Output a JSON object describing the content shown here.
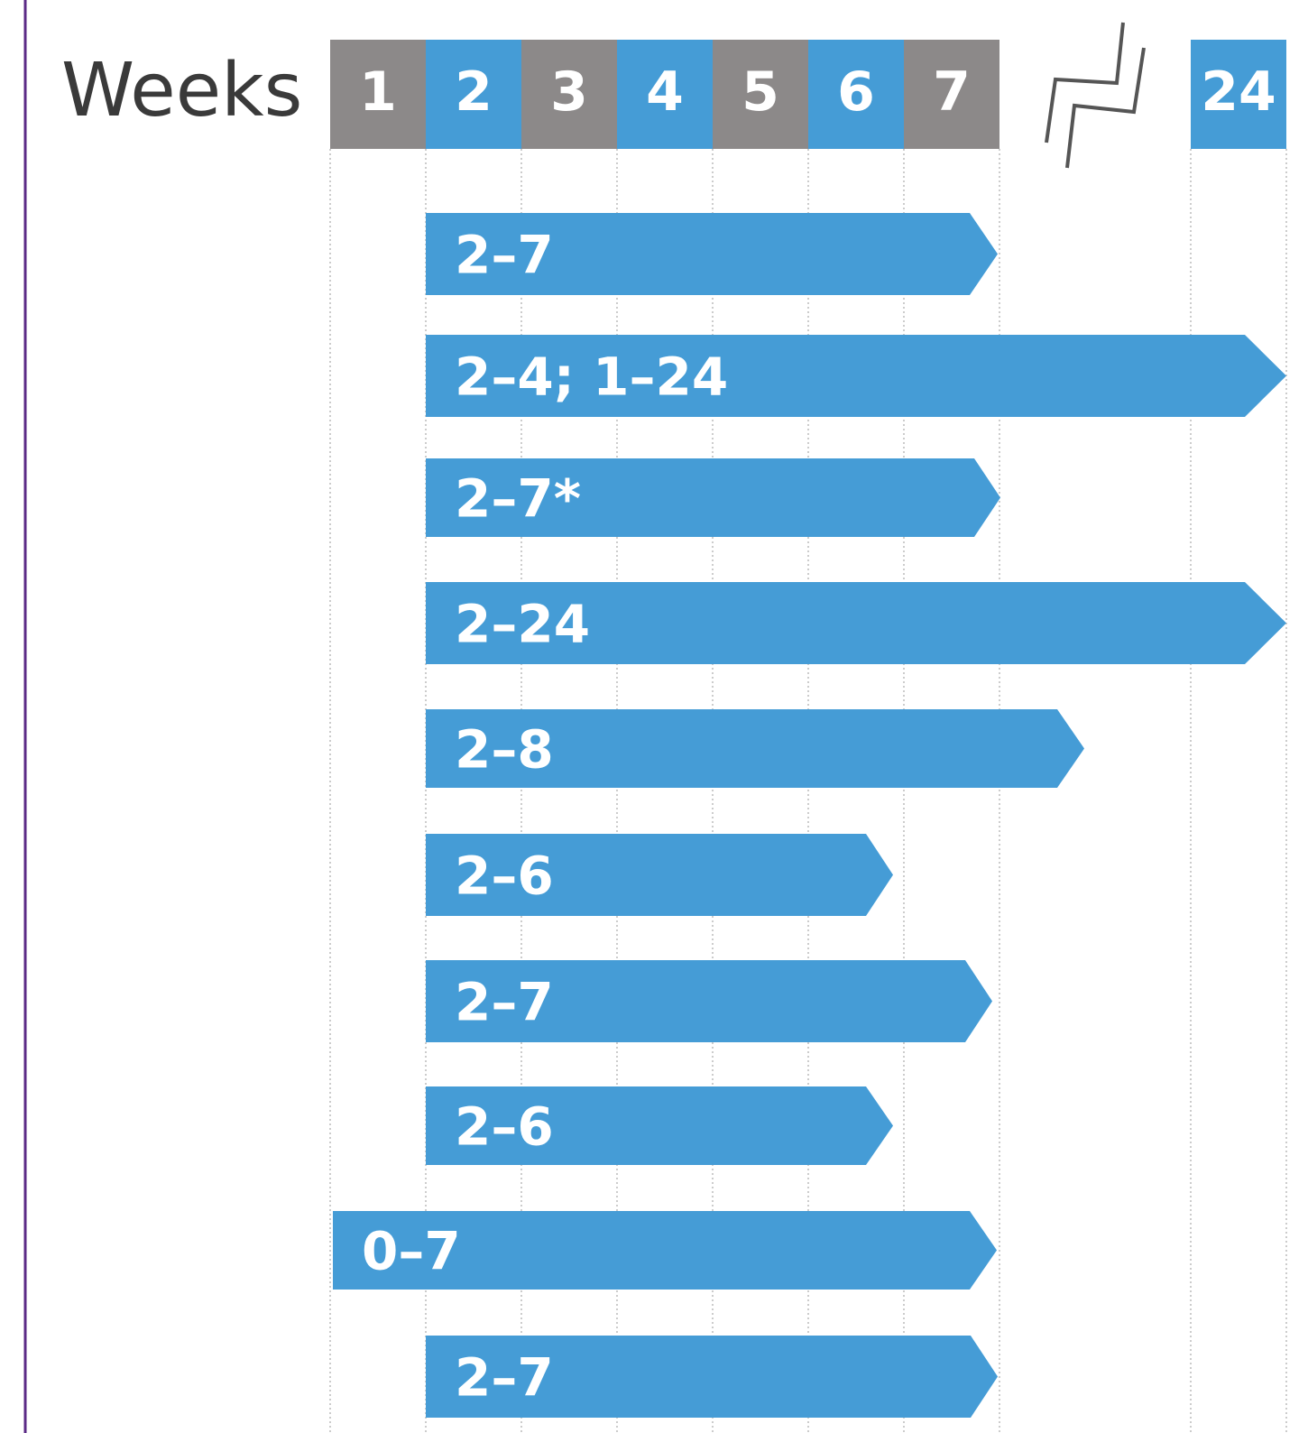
{
  "header": {
    "label": "Weeks",
    "weeks": [
      "1",
      "2",
      "3",
      "4",
      "5",
      "6",
      "7",
      "24"
    ]
  },
  "bars": [
    {
      "label": "2–7"
    },
    {
      "label": "2–4; 1–24"
    },
    {
      "label": "2–7*"
    },
    {
      "label": "2–24"
    },
    {
      "label": "2–8"
    },
    {
      "label": "2–6"
    },
    {
      "label": "2–7"
    },
    {
      "label": "2–6"
    },
    {
      "label": "0–7"
    },
    {
      "label": "2–7"
    }
  ]
}
